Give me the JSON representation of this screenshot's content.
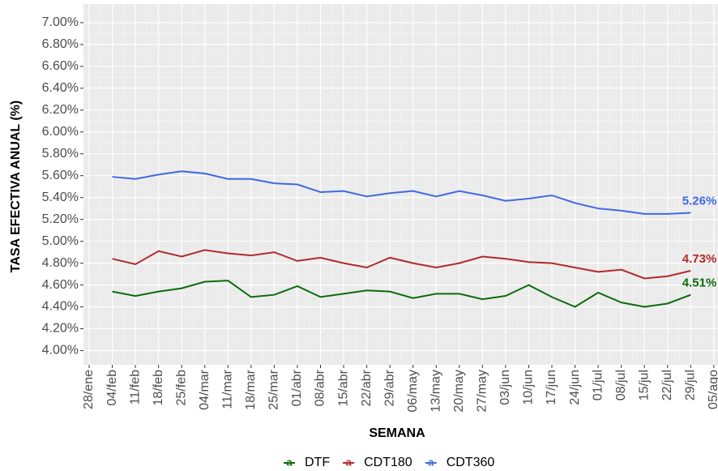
{
  "chart_data": {
    "type": "line",
    "y_label": "TASA EFECTIVA ANUAL (%)",
    "x_label": "SEMANA",
    "categories": [
      "28/ene",
      "04/feb",
      "11/feb",
      "18/feb",
      "25/feb",
      "04/mar",
      "11/mar",
      "18/mar",
      "25/mar",
      "01/abr",
      "08/abr",
      "15/abr",
      "22/abr",
      "29/abr",
      "06/may",
      "13/may",
      "20/may",
      "27/may",
      "03/jun",
      "10/jun",
      "17/jun",
      "24/jun",
      "01/jul",
      "08/jul",
      "15/jul",
      "22/jul",
      "29/jul",
      "05/ago"
    ],
    "series": [
      {
        "name": "DTF",
        "color": "#0b6b0b",
        "values": [
          null,
          4.54,
          4.5,
          4.54,
          4.57,
          4.63,
          4.64,
          4.49,
          4.51,
          4.59,
          4.49,
          4.52,
          4.55,
          4.54,
          4.48,
          4.52,
          4.52,
          4.47,
          4.5,
          4.6,
          4.49,
          4.4,
          4.53,
          4.44,
          4.4,
          4.43,
          4.51,
          null
        ],
        "value_labels": [
          null,
          null,
          null,
          null,
          null,
          null,
          null,
          null,
          null,
          null,
          null,
          null,
          null,
          null,
          null,
          null,
          null,
          null,
          null,
          null,
          null,
          null,
          null,
          null,
          null,
          null,
          "4.51%",
          null
        ]
      },
      {
        "name": "CDT180",
        "color": "#b22a2a",
        "values": [
          null,
          4.84,
          4.79,
          4.91,
          4.86,
          4.92,
          4.89,
          4.87,
          4.9,
          4.82,
          4.85,
          4.8,
          4.76,
          4.85,
          4.8,
          4.76,
          4.8,
          4.86,
          4.84,
          4.81,
          4.8,
          4.76,
          4.72,
          4.74,
          4.66,
          4.68,
          4.73,
          null
        ],
        "value_labels": [
          null,
          null,
          null,
          null,
          null,
          null,
          null,
          null,
          null,
          null,
          null,
          null,
          null,
          null,
          null,
          null,
          null,
          null,
          null,
          null,
          null,
          null,
          null,
          null,
          null,
          null,
          "4.73%",
          null
        ]
      },
      {
        "name": "CDT360",
        "color": "#4169e1",
        "values": [
          null,
          5.59,
          5.57,
          5.61,
          5.64,
          5.62,
          5.57,
          5.57,
          5.53,
          5.52,
          5.45,
          5.46,
          5.41,
          5.44,
          5.46,
          5.41,
          5.46,
          5.42,
          5.37,
          5.39,
          5.42,
          5.35,
          5.3,
          5.28,
          5.25,
          5.25,
          5.26,
          null
        ],
        "value_labels": [
          null,
          null,
          null,
          null,
          null,
          null,
          null,
          null,
          null,
          null,
          null,
          null,
          null,
          null,
          null,
          null,
          null,
          null,
          null,
          null,
          null,
          null,
          null,
          null,
          null,
          null,
          "5.26%",
          null
        ]
      }
    ],
    "ylim": [
      3.87,
      7.17
    ],
    "yticks": [
      {
        "value": 4.0,
        "label": "4.00%"
      },
      {
        "value": 4.2,
        "label": "4.20%"
      },
      {
        "value": 4.4,
        "label": "4.40%"
      },
      {
        "value": 4.6,
        "label": "4.60%"
      },
      {
        "value": 4.8,
        "label": "4.80%"
      },
      {
        "value": 5.0,
        "label": "5.00%"
      },
      {
        "value": 5.2,
        "label": "5.20%"
      },
      {
        "value": 5.4,
        "label": "5.40%"
      },
      {
        "value": 5.6,
        "label": "5.60%"
      },
      {
        "value": 5.8,
        "label": "5.80%"
      },
      {
        "value": 6.0,
        "label": "6.00%"
      },
      {
        "value": 6.2,
        "label": "6.20%"
      },
      {
        "value": 6.4,
        "label": "6.40%"
      },
      {
        "value": 6.6,
        "label": "6.60%"
      },
      {
        "value": 6.8,
        "label": "6.80%"
      },
      {
        "value": 7.0,
        "label": "7.00%"
      }
    ],
    "grid": true,
    "legend": "bottom"
  }
}
